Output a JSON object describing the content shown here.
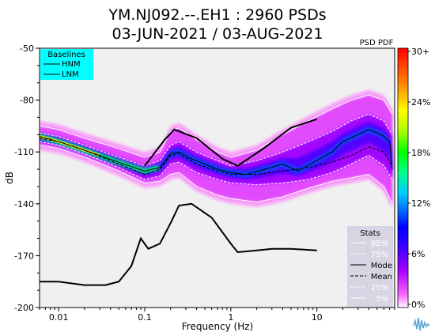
{
  "chart_data": {
    "type": "heatmap",
    "title": "YM.NJ092.--.EH1 : 2960 PSDs",
    "subtitle": "03-JUN-2021 / 03-AUG-2021",
    "xlabel": "Frequency (Hz)",
    "ylabel": "dB",
    "xscale": "log",
    "xlim": [
      0.006,
      80
    ],
    "ylim": [
      -200,
      -50
    ],
    "xticks": [
      {
        "value": 0.01,
        "label": "0.01"
      },
      {
        "value": 0.1,
        "label": "0.1"
      },
      {
        "value": 1,
        "label": "1"
      },
      {
        "value": 10,
        "label": "10"
      }
    ],
    "yticks": [
      {
        "value": -50,
        "label": "-50"
      },
      {
        "value": -80,
        "label": "-80"
      },
      {
        "value": -110,
        "label": "-110"
      },
      {
        "value": -140,
        "label": "-140"
      },
      {
        "value": -170,
        "label": "-170"
      },
      {
        "value": -200,
        "label": "-200"
      }
    ],
    "baselines": {
      "title": "Baselines",
      "legend_bg": "#00ffff",
      "series": [
        {
          "name": "HNM",
          "x": [
            0.1,
            0.17,
            0.22,
            0.4,
            0.8,
            1.2,
            2.4,
            5,
            10
          ],
          "y": [
            -118,
            -103,
            -97,
            -102,
            -114,
            -118,
            -108,
            -96,
            -91
          ]
        },
        {
          "name": "LNM",
          "x": [
            0.006,
            0.01,
            0.02,
            0.035,
            0.05,
            0.07,
            0.09,
            0.11,
            0.15,
            0.2,
            0.25,
            0.35,
            0.6,
            1.0,
            1.2,
            2,
            3,
            5,
            10
          ],
          "y": [
            -185,
            -185,
            -187,
            -187,
            -185,
            -176,
            -160,
            -166,
            -163,
            -151,
            -141,
            -140,
            -148,
            -163,
            -168,
            -167,
            -166,
            -166,
            -167
          ]
        }
      ]
    },
    "statistics": {
      "title": "Stats",
      "legend_bg": "#d9d4e3",
      "entries": [
        "95%",
        "75%",
        "Mode",
        "Mean",
        "25%",
        "5%"
      ],
      "percentile_95": {
        "x": [
          0.006,
          0.01,
          0.02,
          0.05,
          0.1,
          0.15,
          0.2,
          0.25,
          0.4,
          0.7,
          1,
          2,
          4,
          8,
          15,
          25,
          40,
          60,
          75
        ],
        "y": [
          -95,
          -97,
          -102,
          -108,
          -113,
          -110,
          -98,
          -96,
          -103,
          -110,
          -113,
          -109,
          -100,
          -92,
          -85,
          -80,
          -77,
          -80,
          -88
        ]
      },
      "percentile_75": {
        "x": [
          0.006,
          0.01,
          0.02,
          0.05,
          0.1,
          0.15,
          0.2,
          0.25,
          0.4,
          0.7,
          1,
          2,
          4,
          8,
          15,
          25,
          40,
          60,
          75
        ],
        "y": [
          -99,
          -101,
          -106,
          -113,
          -118,
          -115,
          -106,
          -104,
          -110,
          -115,
          -118,
          -115,
          -110,
          -104,
          -98,
          -92,
          -88,
          -92,
          -100
        ]
      },
      "mode": {
        "x": [
          0.006,
          0.01,
          0.02,
          0.05,
          0.1,
          0.15,
          0.2,
          0.25,
          0.35,
          0.5,
          0.7,
          1,
          1.5,
          2.5,
          4,
          6,
          10,
          15,
          20,
          30,
          40,
          50,
          60,
          70,
          75
        ],
        "y": [
          -101,
          -104,
          -109,
          -116,
          -121,
          -119,
          -111,
          -110,
          -114,
          -117,
          -120,
          -122,
          -123,
          -120,
          -117,
          -121,
          -115,
          -110,
          -104,
          -100,
          -97,
          -99,
          -101,
          -104,
          -120
        ]
      },
      "mean": {
        "x": [
          0.006,
          0.01,
          0.02,
          0.05,
          0.1,
          0.15,
          0.2,
          0.25,
          0.4,
          0.7,
          1,
          2,
          4,
          8,
          15,
          25,
          40,
          60,
          75
        ],
        "y": [
          -102,
          -104,
          -109,
          -117,
          -123,
          -120,
          -112,
          -111,
          -117,
          -121,
          -123,
          -123,
          -121,
          -119,
          -116,
          -112,
          -107,
          -110,
          -118
        ]
      },
      "percentile_25": {
        "x": [
          0.006,
          0.01,
          0.02,
          0.05,
          0.1,
          0.15,
          0.2,
          0.25,
          0.4,
          0.7,
          1,
          2,
          4,
          8,
          15,
          25,
          40,
          60,
          75
        ],
        "y": [
          -104,
          -106,
          -111,
          -119,
          -126,
          -124,
          -117,
          -116,
          -122,
          -126,
          -128,
          -129,
          -128,
          -126,
          -122,
          -117,
          -112,
          -118,
          -126
        ]
      },
      "percentile_5": {
        "x": [
          0.006,
          0.01,
          0.02,
          0.05,
          0.1,
          0.15,
          0.2,
          0.25,
          0.4,
          0.7,
          1,
          2,
          4,
          8,
          15,
          25,
          40,
          60,
          75
        ],
        "y": [
          -106,
          -108,
          -113,
          -121,
          -128,
          -127,
          -123,
          -122,
          -130,
          -135,
          -137,
          -139,
          -136,
          -131,
          -127,
          -125,
          -123,
          -130,
          -140
        ]
      }
    },
    "colorbar": {
      "label": "PSD PDF",
      "ticks": [
        "30+",
        "24%",
        "18%",
        "12%",
        "6%",
        "0%"
      ]
    }
  }
}
